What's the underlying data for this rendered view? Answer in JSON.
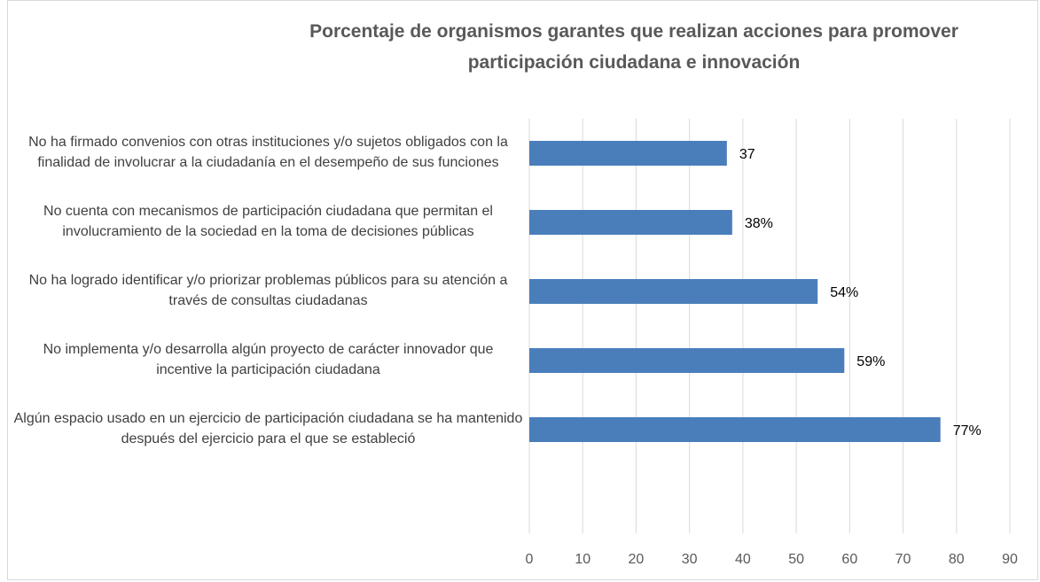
{
  "chart_data": {
    "type": "bar",
    "orientation": "horizontal",
    "title": "Porcentaje de organismos garantes que realizan acciones para promover participación ciudadana e innovación",
    "categories": [
      "No ha firmado convenios con otras instituciones y/o sujetos obligados con la finalidad de involucrar a la ciudadanía en el desempeño de sus funciones",
      "No cuenta con mecanismos de participación ciudadana que permitan el involucramiento de la sociedad en la toma de decisiones públicas",
      "No ha logrado identificar y/o priorizar problemas públicos para su atención a través de consultas ciudadanas",
      "No implementa y/o desarrolla algún proyecto de carácter innovador que incentive la participación ciudadana",
      "Algún espacio usado en un ejercicio de participación ciudadana se ha mantenido después del ejercicio para el que se estableció"
    ],
    "values": [
      37,
      38,
      54,
      59,
      77
    ],
    "value_labels": [
      "37",
      "38%",
      "54%",
      "59%",
      "77%"
    ],
    "color": "#4a7ebb",
    "xlim": [
      0,
      90
    ],
    "xticks": [
      0,
      10,
      20,
      30,
      40,
      50,
      60,
      70,
      80,
      90
    ],
    "grid": true
  }
}
